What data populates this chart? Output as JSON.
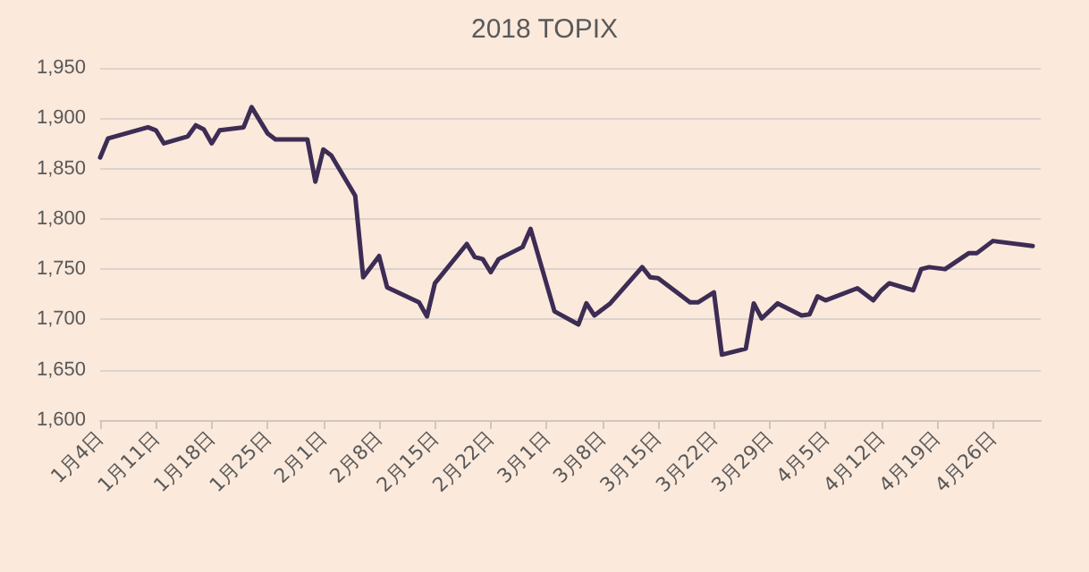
{
  "chart_data": {
    "type": "line",
    "title": "2018 TOPIX",
    "x": [
      "--01-04",
      "--01-05",
      "--01-10",
      "--01-11",
      "--01-12",
      "--01-15",
      "--01-16",
      "--01-17",
      "--01-18",
      "--01-19",
      "--01-22",
      "--01-23",
      "--01-25",
      "--01-26",
      "--01-30",
      "--01-31",
      "--02-01",
      "--02-02",
      "--02-05",
      "--02-06",
      "--02-08",
      "--02-09",
      "--02-13",
      "--02-14",
      "--02-15",
      "--02-19",
      "--02-20",
      "--02-21",
      "--02-22",
      "--02-23",
      "--02-26",
      "--02-27",
      "--03-02",
      "--03-05",
      "--03-06",
      "--03-07",
      "--03-09",
      "--03-13",
      "--03-14",
      "--03-15",
      "--03-19",
      "--03-20",
      "--03-22",
      "--03-23",
      "--03-26",
      "--03-27",
      "--03-28",
      "--03-30",
      "--04-02",
      "--04-03",
      "--04-04",
      "--04-05",
      "--04-09",
      "--04-11",
      "--04-12",
      "--04-13",
      "--04-16",
      "--04-17",
      "--04-18",
      "--04-20",
      "--04-23",
      "--04-24",
      "--04-26",
      "--05-01"
    ],
    "series": [
      {
        "color": "#3d2c54",
        "values": [
          1861,
          1880,
          1891,
          1888,
          1875,
          1882,
          1893,
          1889,
          1875,
          1888,
          1891,
          1911,
          1885,
          1879,
          1879,
          1837,
          1869,
          1863,
          1823,
          1742,
          1763,
          1732,
          1717,
          1703,
          1736,
          1775,
          1762,
          1760,
          1747,
          1760,
          1772,
          1790,
          1708,
          1695,
          1716,
          1704,
          1716,
          1752,
          1742,
          1741,
          1717,
          1717,
          1727,
          1665,
          1671,
          1716,
          1701,
          1716,
          1704,
          1705,
          1723,
          1719,
          1731,
          1719,
          1729,
          1736,
          1729,
          1750,
          1752,
          1750,
          1766,
          1766,
          1778,
          1773
        ]
      }
    ],
    "xlim": [
      "--01-04",
      "--05-02"
    ],
    "xticks": [
      {
        "value": "--01-04",
        "label": "1月4日"
      },
      {
        "value": "--01-11",
        "label": "1月11日"
      },
      {
        "value": "--01-18",
        "label": "1月18日"
      },
      {
        "value": "--01-25",
        "label": "1月25日"
      },
      {
        "value": "--02-01",
        "label": "2月1日"
      },
      {
        "value": "--02-08",
        "label": "2月8日"
      },
      {
        "value": "--02-15",
        "label": "2月15日"
      },
      {
        "value": "--02-22",
        "label": "2月22日"
      },
      {
        "value": "--03-01",
        "label": "3月1日"
      },
      {
        "value": "--03-08",
        "label": "3月8日"
      },
      {
        "value": "--03-15",
        "label": "3月15日"
      },
      {
        "value": "--03-22",
        "label": "3月22日"
      },
      {
        "value": "--03-29",
        "label": "3月29日"
      },
      {
        "value": "--04-05",
        "label": "4月5日"
      },
      {
        "value": "--04-12",
        "label": "4月12日"
      },
      {
        "value": "--04-19",
        "label": "4月19日"
      },
      {
        "value": "--04-26",
        "label": "4月26日"
      }
    ],
    "ylim": [
      1600,
      1950
    ],
    "yticks": [
      {
        "value": 1600,
        "label": "1,600"
      },
      {
        "value": 1650,
        "label": "1,650"
      },
      {
        "value": 1700,
        "label": "1,700"
      },
      {
        "value": 1750,
        "label": "1,750"
      },
      {
        "value": 1800,
        "label": "1,800"
      },
      {
        "value": 1850,
        "label": "1,850"
      },
      {
        "value": 1900,
        "label": "1,900"
      },
      {
        "value": 1950,
        "label": "1,950"
      }
    ],
    "grid": "y",
    "marker": "none",
    "line_style": "solid"
  }
}
